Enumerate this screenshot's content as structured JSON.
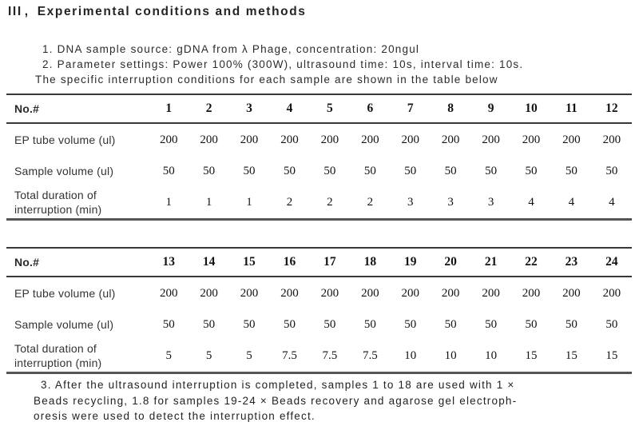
{
  "page": {
    "background": "#ffffff",
    "text_color": "#262626"
  },
  "colors": {
    "rule_thin": "#383838",
    "rule_thick": "#555555"
  },
  "heading": {
    "numeral": "III",
    "comma": "、",
    "title": "Experimental conditions and methods"
  },
  "intro": {
    "lines": [
      {
        "text": "1. DNA sample source: gDNA from λ Phage, concentration: 20ngul",
        "indent": true
      },
      {
        "text": "2. Parameter settings: Power 100% (300W), ultrasound time: 10s, interval time: 10s.",
        "indent": true
      },
      {
        "text": "The specific interruption conditions for each sample are shown in the table below",
        "indent": false
      }
    ]
  },
  "tables": [
    {
      "header_label": "No.#",
      "columns": [
        "1",
        "2",
        "3",
        "4",
        "5",
        "6",
        "7",
        "8",
        "9",
        "10",
        "11",
        "12"
      ],
      "rows": [
        {
          "label_lines": [
            "EP tube volume (ul)"
          ],
          "values": [
            "200",
            "200",
            "200",
            "200",
            "200",
            "200",
            "200",
            "200",
            "200",
            "200",
            "200",
            "200"
          ]
        },
        {
          "label_lines": [
            "Sample volume (ul)"
          ],
          "values": [
            "50",
            "50",
            "50",
            "50",
            "50",
            "50",
            "50",
            "50",
            "50",
            "50",
            "50",
            "50"
          ]
        },
        {
          "label_lines": [
            "Total duration of",
            "interruption (min)"
          ],
          "values": [
            "1",
            "1",
            "1",
            "2",
            "2",
            "2",
            "3",
            "3",
            "3",
            "4",
            "4",
            "4"
          ]
        }
      ]
    },
    {
      "header_label": "No.#",
      "columns": [
        "13",
        "14",
        "15",
        "16",
        "17",
        "18",
        "19",
        "20",
        "21",
        "22",
        "23",
        "24"
      ],
      "rows": [
        {
          "label_lines": [
            "EP tube volume (ul)"
          ],
          "values": [
            "200",
            "200",
            "200",
            "200",
            "200",
            "200",
            "200",
            "200",
            "200",
            "200",
            "200",
            "200"
          ]
        },
        {
          "label_lines": [
            "Sample volume (ul)"
          ],
          "values": [
            "50",
            "50",
            "50",
            "50",
            "50",
            "50",
            "50",
            "50",
            "50",
            "50",
            "50",
            "50"
          ]
        },
        {
          "label_lines": [
            "Total duration of",
            "interruption (min)"
          ],
          "values": [
            "5",
            "5",
            "5",
            "7.5",
            "7.5",
            "7.5",
            "10",
            "10",
            "10",
            "15",
            "15",
            "15"
          ]
        }
      ]
    }
  ],
  "footer_note": {
    "lines": [
      "3. After the ultrasound interruption is completed, samples 1 to 18 are used with 1 ×",
      "Beads recycling, 1.8 for samples 19-24 ×  Beads recovery and agarose gel electroph-",
      "oresis were used to detect the interruption effect."
    ]
  }
}
